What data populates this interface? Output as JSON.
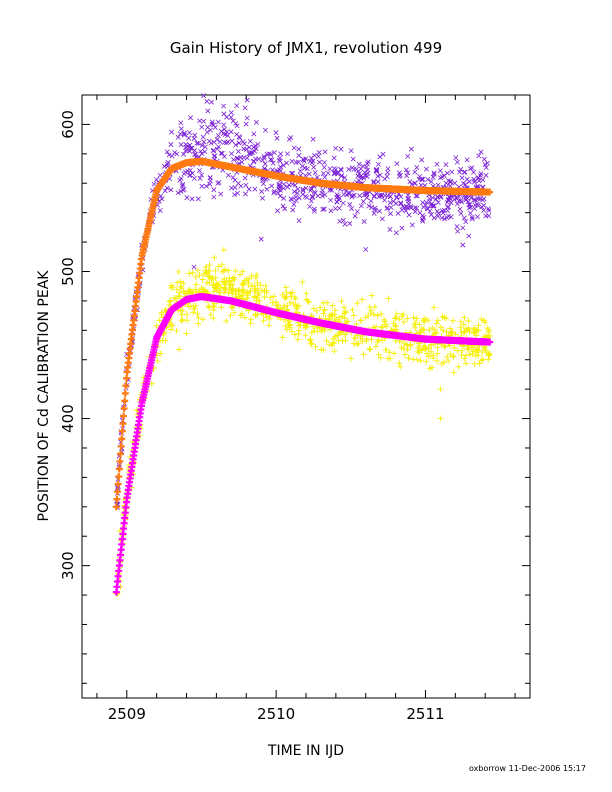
{
  "chart_data": {
    "type": "scatter",
    "title": "Gain History of JMX1, revolution 499",
    "xlabel": "TIME IN IJD",
    "ylabel": "POSITION OF Cd CALIBRATION PEAK",
    "xlim": [
      2508.7,
      2511.7
    ],
    "ylim": [
      210,
      620
    ],
    "x_ticks": [
      2509,
      2510,
      2511
    ],
    "y_ticks": [
      300,
      400,
      500,
      600
    ],
    "grid": false,
    "footer": "oxborrow 11-Dec-2006 15:17",
    "series": [
      {
        "marker": "x",
        "color": "#7a1fd6",
        "x_range": [
          2508.93,
          2511.43
        ],
        "noise": 12,
        "outliers": [
          [
            2509.45,
            503
          ],
          [
            2509.9,
            522
          ],
          [
            2510.6,
            515
          ],
          [
            2511.25,
            518
          ],
          [
            2509.7,
            608
          ]
        ]
      },
      {
        "marker": "line",
        "color": "#ff7a10",
        "x": [
          2508.93,
          2509.0,
          2509.1,
          2509.2,
          2509.3,
          2509.4,
          2509.5,
          2509.7,
          2510.0,
          2510.3,
          2510.6,
          2511.0,
          2511.43
        ],
        "y": [
          340,
          430,
          510,
          555,
          570,
          574,
          575,
          571,
          565,
          560,
          557,
          555,
          554
        ]
      },
      {
        "marker": "+",
        "color": "#f5ee00",
        "x_range": [
          2508.93,
          2511.43
        ],
        "noise": 9,
        "outliers": [
          [
            2511.1,
            400
          ],
          [
            2511.1,
            420
          ],
          [
            2511.42,
            440
          ],
          [
            2509.35,
            447
          ]
        ]
      },
      {
        "marker": "+",
        "color": "#ff00ff",
        "x": [
          2508.93,
          2509.0,
          2509.1,
          2509.2,
          2509.3,
          2509.4,
          2509.5,
          2509.7,
          2510.0,
          2510.3,
          2510.6,
          2511.0,
          2511.43
        ],
        "y": [
          282,
          345,
          410,
          455,
          474,
          481,
          483,
          480,
          472,
          465,
          459,
          454,
          452
        ]
      }
    ]
  }
}
